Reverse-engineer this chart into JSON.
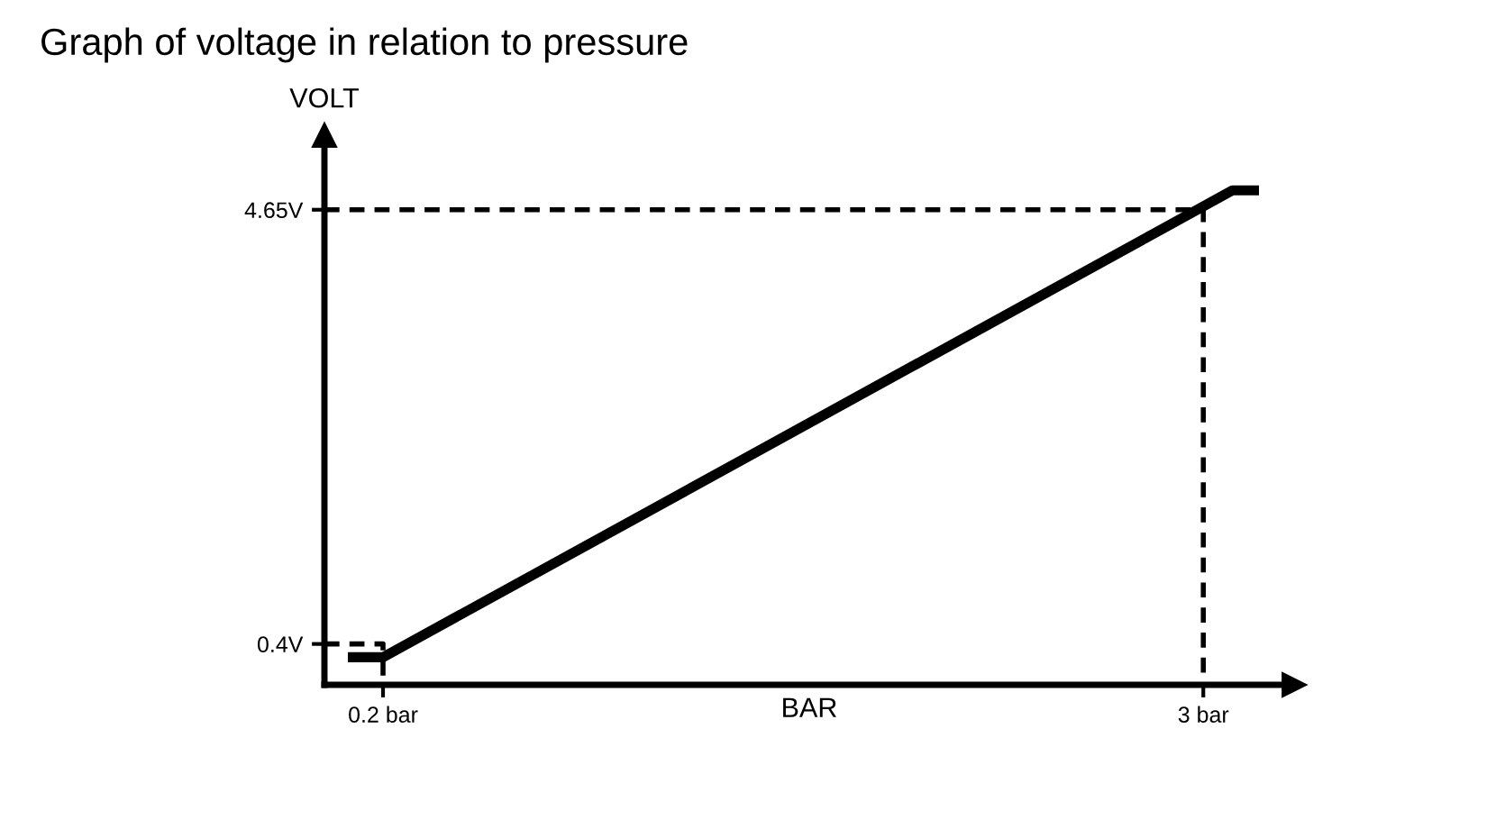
{
  "chart_data": {
    "type": "line",
    "title": "Graph of voltage in relation to pressure",
    "xlabel": "BAR",
    "ylabel": "VOLT",
    "x": [
      0.08,
      0.2,
      3.1,
      3.19
    ],
    "series": [
      {
        "color": "#000000",
        "values": [
          0.27,
          0.27,
          4.84,
          4.84
        ]
      },
      {
        "color": "#000000",
        "line_style": "dashed",
        "x": [
          0,
          0.2,
          0.2
        ],
        "values": [
          0.4,
          0.4,
          0
        ]
      },
      {
        "color": "#000000",
        "line_style": "dashed",
        "x": [
          0,
          3,
          3
        ],
        "values": [
          4.65,
          4.65,
          0
        ]
      }
    ],
    "xlim": [
      0,
      3.31
    ],
    "ylim": [
      0,
      5.38
    ],
    "xticks": [
      {
        "value": 0.2,
        "label": "0.2 bar"
      },
      {
        "value": 3,
        "label": "3 bar"
      }
    ],
    "yticks": [
      {
        "value": 0.4,
        "label": "0.4V"
      },
      {
        "value": 4.65,
        "label": "4.65V"
      }
    ],
    "grid": false,
    "legend": false,
    "marker": "none",
    "line_style": "solid"
  }
}
